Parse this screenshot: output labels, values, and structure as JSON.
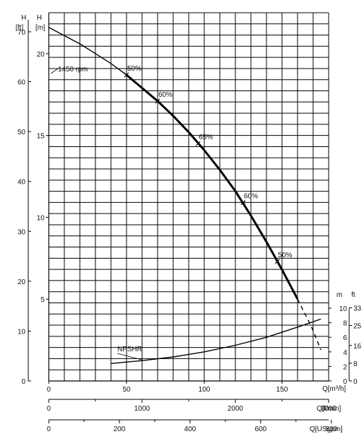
{
  "chart_data": {
    "type": "line",
    "axis_labels": {
      "h_ft": "H",
      "h_ft_unit": "[ft]",
      "h_m": "H",
      "h_m_unit": "[m]",
      "npsh_m": "m",
      "npsh_ft": "ft",
      "q_m3h": "Q[m³/h]",
      "q_lmin": "Q[l/min]",
      "q_usgpm": "Q[USgpm]"
    },
    "axes": {
      "q_m3h": {
        "range": [
          0,
          180
        ],
        "ticks": [
          0,
          50,
          100,
          150
        ]
      },
      "h_m": {
        "range": [
          0,
          22.5
        ],
        "ticks": [
          5,
          10,
          15,
          20
        ]
      },
      "h_ft": {
        "ticks": [
          0,
          10,
          20,
          30,
          40,
          50,
          60,
          70
        ]
      },
      "q_lmin": {
        "ticks": [
          0,
          1000,
          2000,
          3000
        ]
      },
      "q_usgpm": {
        "ticks": [
          0,
          200,
          400,
          600,
          800
        ]
      },
      "npsh_m": {
        "range": [
          0,
          10
        ],
        "ticks": [
          0,
          2,
          4,
          6,
          8,
          10
        ]
      },
      "npsh_ft": {
        "ticks": [
          0,
          8,
          16,
          25,
          33
        ]
      }
    },
    "series": [
      {
        "name": "1450 rpm",
        "x": [
          0,
          20,
          40,
          50,
          60,
          70,
          80,
          90,
          100,
          110,
          120,
          130,
          140,
          150,
          160
        ],
        "y": [
          21.6,
          20.6,
          19.4,
          18.7,
          17.9,
          17.1,
          16.2,
          15.2,
          14.1,
          12.9,
          11.6,
          10.1,
          8.5,
          6.8,
          5.0
        ]
      },
      {
        "name": "1450 rpm extension",
        "x": [
          160,
          169,
          175
        ],
        "y": [
          5.0,
          3.3,
          1.9
        ]
      },
      {
        "name": "NPSHR",
        "x": [
          40,
          60,
          80,
          100,
          120,
          140,
          160,
          175
        ],
        "y": [
          2.4,
          2.8,
          3.3,
          4.0,
          4.9,
          6.0,
          7.4,
          8.5
        ]
      }
    ],
    "efficiency_marks": [
      {
        "label": "50%",
        "x": 50,
        "y": 18.7
      },
      {
        "label": "60%",
        "x": 70,
        "y": 17.1
      },
      {
        "label": "65%",
        "x": 96,
        "y": 14.5
      },
      {
        "label": "60%",
        "x": 125,
        "y": 10.9
      },
      {
        "label": "50%",
        "x": 147,
        "y": 7.3
      }
    ],
    "annotations": {
      "curve_label": "1450 rpm",
      "npsh_label": "NPSHR"
    },
    "grid": true
  }
}
